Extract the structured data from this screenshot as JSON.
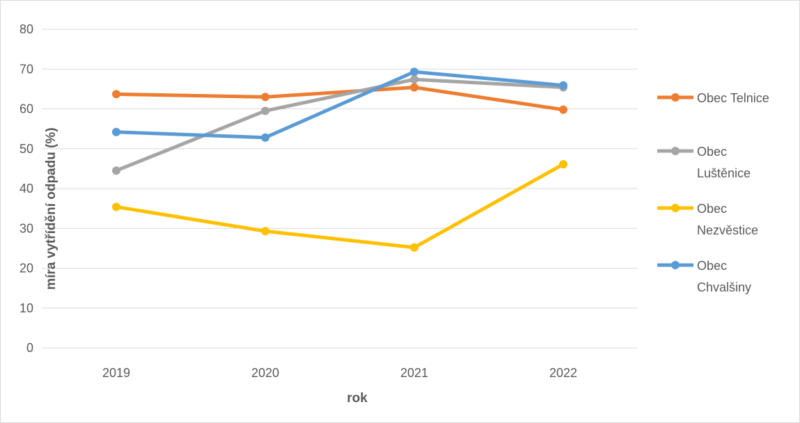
{
  "chart_data": {
    "type": "line",
    "title": "",
    "xlabel": "rok",
    "ylabel": "míra vytřídění odpadu (%)",
    "categories": [
      "2019",
      "2020",
      "2021",
      "2022"
    ],
    "ylim": [
      0,
      80
    ],
    "yticks": [
      "0",
      "10",
      "20",
      "30",
      "40",
      "50",
      "60",
      "70",
      "80"
    ],
    "grid": true,
    "legend_position": "right",
    "series": [
      {
        "name": "Obec Telnice",
        "legend_lines": [
          "Obec Telnice"
        ],
        "color": "#ed7d31",
        "values": [
          63.7,
          63.0,
          65.4,
          59.8
        ]
      },
      {
        "name": "Obec Luštěnice",
        "legend_lines": [
          "Obec",
          "Luštěnice"
        ],
        "color": "#a5a5a5",
        "values": [
          44.5,
          59.5,
          67.4,
          65.4
        ]
      },
      {
        "name": "Obec Nezvěstice",
        "legend_lines": [
          "Obec",
          "Nezvěstice"
        ],
        "color": "#ffc000",
        "values": [
          35.4,
          29.3,
          25.2,
          46.1
        ]
      },
      {
        "name": "Obec Chvalšiny",
        "legend_lines": [
          "Obec",
          "Chvalšiny"
        ],
        "color": "#5b9bd5",
        "values": [
          54.2,
          52.8,
          69.3,
          65.9
        ]
      }
    ]
  }
}
